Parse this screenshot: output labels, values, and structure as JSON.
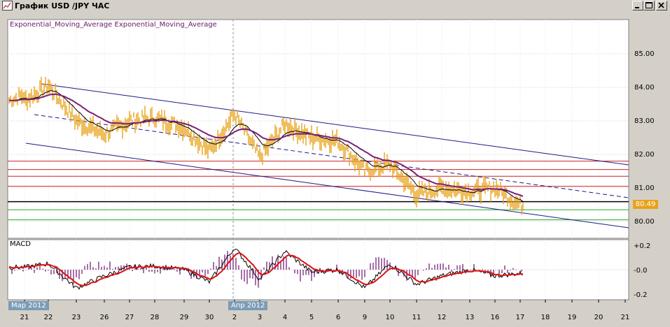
{
  "window": {
    "title": "График USD /JPY  ЧАС",
    "controls": [
      "minimize",
      "maximize",
      "close"
    ]
  },
  "main_chart": {
    "indicator_label": "Exponential_Moving_Average Exponential_Moving_Average",
    "current_price": "80.49",
    "y_ticks": [
      "85.00",
      "84.00",
      "83.00",
      "82.00",
      "81.00",
      "80.00"
    ],
    "colors": {
      "price": "#e8a21a",
      "ema_long": "#7a1f7a",
      "ema_short": "#000000",
      "channel": "#1a1a8c",
      "resistance": "#cc2222",
      "support": "#22aa22",
      "pivot": "#000000"
    }
  },
  "macd_panel": {
    "label": "MACD",
    "y_ticks": [
      "+0.2",
      "-0.0",
      "-0.2"
    ]
  },
  "x_axis": {
    "ticks": [
      "21",
      "22",
      "23",
      "26",
      "27",
      "28",
      "29",
      "30",
      "2",
      "3",
      "4",
      "5",
      "6",
      "9",
      "10",
      "11",
      "12",
      "13",
      "16",
      "17",
      "18",
      "19",
      "20",
      "21"
    ],
    "month_tags": [
      "Мар 2012",
      "Апр 2012"
    ]
  },
  "chart_data": [
    {
      "type": "line",
      "title": "",
      "ylim": [
        79.5,
        86.0
      ],
      "x": [
        "21",
        "22",
        "23",
        "26",
        "27",
        "28",
        "29",
        "30",
        "2",
        "3",
        "4",
        "5",
        "6",
        "9",
        "10",
        "11",
        "12",
        "13",
        "16",
        "17"
      ],
      "series": [
        {
          "name": "",
          "values": [
            83.6,
            84.05,
            83.0,
            82.6,
            83.0,
            83.1,
            82.8,
            82.1,
            83.2,
            81.9,
            82.9,
            82.5,
            82.4,
            81.5,
            81.7,
            80.8,
            81.0,
            80.9,
            81.0,
            80.49
          ]
        }
      ]
    },
    {
      "type": "bar",
      "title": "MACD",
      "ylim": [
        -0.25,
        0.25
      ],
      "categories": [
        "21",
        "22",
        "23",
        "26",
        "27",
        "28",
        "29",
        "30",
        "2",
        "3",
        "4",
        "5",
        "6",
        "9",
        "10",
        "11",
        "12",
        "13",
        "16",
        "17"
      ],
      "values": [
        0.02,
        0.05,
        -0.15,
        -0.05,
        0.02,
        0.03,
        0.0,
        -0.1,
        0.18,
        -0.08,
        0.15,
        -0.02,
        0.0,
        -0.15,
        0.05,
        -0.12,
        -0.05,
        0.0,
        -0.05,
        -0.03
      ]
    }
  ]
}
